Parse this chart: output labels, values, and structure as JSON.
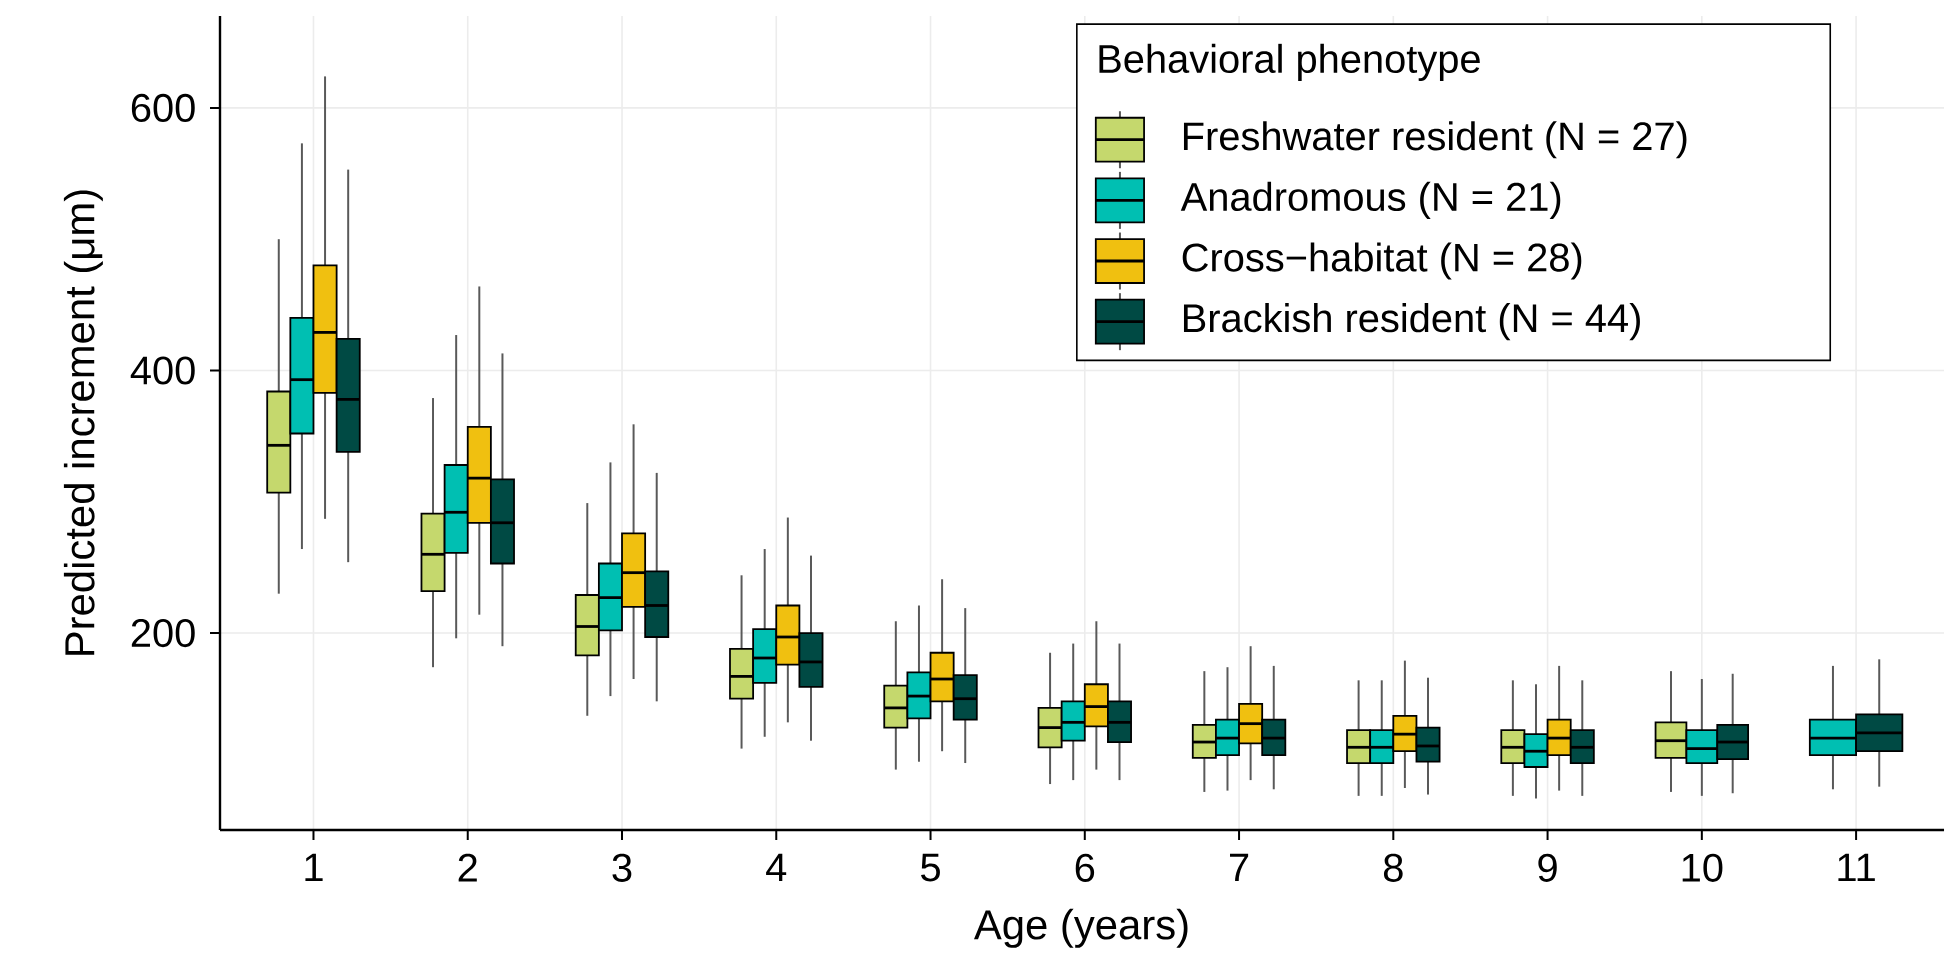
{
  "chart_data": {
    "type": "box",
    "xlabel": "Age (years)",
    "ylabel": "Predicted increment (μm)",
    "categories": [
      "1",
      "2",
      "3",
      "4",
      "5",
      "6",
      "7",
      "8",
      "9",
      "10",
      "11"
    ],
    "ylim": [
      50,
      670
    ],
    "yticks": [
      200,
      400,
      600
    ],
    "grid": true,
    "legend": "top right",
    "legend_title": "Behavioral phenotype",
    "series": [
      {
        "name": "Freshwater resident (N = 27)",
        "color": "#c5d86d",
        "boxes": [
          {
            "low": 230,
            "q1": 307,
            "median": 343,
            "q3": 384,
            "high": 500
          },
          {
            "low": 174,
            "q1": 232,
            "median": 260,
            "q3": 291,
            "high": 379
          },
          {
            "low": 137,
            "q1": 183,
            "median": 205,
            "q3": 229,
            "high": 299
          },
          {
            "low": 112,
            "q1": 150,
            "median": 167,
            "q3": 188,
            "high": 244
          },
          {
            "low": 96,
            "q1": 128,
            "median": 143,
            "q3": 160,
            "high": 209
          },
          {
            "low": 85,
            "q1": 113,
            "median": 128,
            "q3": 143,
            "high": 185
          },
          {
            "low": 79,
            "q1": 105,
            "median": 117,
            "q3": 130,
            "high": 171
          },
          {
            "low": 76,
            "q1": 101,
            "median": 113,
            "q3": 126,
            "high": 164
          },
          {
            "low": 76,
            "q1": 101,
            "median": 113,
            "q3": 126,
            "high": 164
          },
          {
            "low": 79,
            "q1": 105,
            "median": 118,
            "q3": 132,
            "high": 171
          },
          null
        ]
      },
      {
        "name": "Anadromous (N = 21)",
        "color": "#00bfb2",
        "boxes": [
          {
            "low": 264,
            "q1": 352,
            "median": 393,
            "q3": 440,
            "high": 573
          },
          {
            "low": 196,
            "q1": 261,
            "median": 292,
            "q3": 328,
            "high": 427
          },
          {
            "low": 152,
            "q1": 202,
            "median": 227,
            "q3": 253,
            "high": 330
          },
          {
            "low": 121,
            "q1": 162,
            "median": 181,
            "q3": 203,
            "high": 264
          },
          {
            "low": 102,
            "q1": 135,
            "median": 152,
            "q3": 170,
            "high": 221
          },
          {
            "low": 88,
            "q1": 118,
            "median": 132,
            "q3": 148,
            "high": 192
          },
          {
            "low": 80,
            "q1": 107,
            "median": 120,
            "q3": 134,
            "high": 174
          },
          {
            "low": 76,
            "q1": 101,
            "median": 113,
            "q3": 126,
            "high": 164
          },
          {
            "low": 74,
            "q1": 98,
            "median": 110,
            "q3": 123,
            "high": 161
          },
          {
            "low": 76,
            "q1": 101,
            "median": 112,
            "q3": 126,
            "high": 165
          },
          {
            "low": 81,
            "q1": 107,
            "median": 120,
            "q3": 134,
            "high": 175
          }
        ]
      },
      {
        "name": "Cross−habitat (N = 28)",
        "color": "#f0c010",
        "boxes": [
          {
            "low": 287,
            "q1": 383,
            "median": 429,
            "q3": 480,
            "high": 624
          },
          {
            "low": 214,
            "q1": 284,
            "median": 318,
            "q3": 357,
            "high": 464
          },
          {
            "low": 165,
            "q1": 220,
            "median": 246,
            "q3": 276,
            "high": 359
          },
          {
            "low": 132,
            "q1": 176,
            "median": 197,
            "q3": 221,
            "high": 288
          },
          {
            "low": 110,
            "q1": 148,
            "median": 165,
            "q3": 185,
            "high": 241
          },
          {
            "low": 96,
            "q1": 129,
            "median": 144,
            "q3": 161,
            "high": 209
          },
          {
            "low": 88,
            "q1": 116,
            "median": 131,
            "q3": 146,
            "high": 190
          },
          {
            "low": 82,
            "q1": 110,
            "median": 123,
            "q3": 137,
            "high": 179
          },
          {
            "low": 80,
            "q1": 107,
            "median": 120,
            "q3": 134,
            "high": 175
          },
          null,
          null
        ]
      },
      {
        "name": "Brackish resident (N = 44)",
        "color": "#004a44",
        "boxes": [
          {
            "low": 254,
            "q1": 338,
            "median": 378,
            "q3": 424,
            "high": 553
          },
          {
            "low": 190,
            "q1": 253,
            "median": 284,
            "q3": 317,
            "high": 413
          },
          {
            "low": 148,
            "q1": 197,
            "median": 221,
            "q3": 247,
            "high": 322
          },
          {
            "low": 118,
            "q1": 159,
            "median": 178,
            "q3": 200,
            "high": 259
          },
          {
            "low": 101,
            "q1": 134,
            "median": 150,
            "q3": 168,
            "high": 219
          },
          {
            "low": 88,
            "q1": 117,
            "median": 132,
            "q3": 148,
            "high": 192
          },
          {
            "low": 81,
            "q1": 107,
            "median": 120,
            "q3": 134,
            "high": 175
          },
          {
            "low": 77,
            "q1": 102,
            "median": 114,
            "q3": 128,
            "high": 166
          },
          {
            "low": 76,
            "q1": 101,
            "median": 113,
            "q3": 126,
            "high": 164
          },
          {
            "low": 78,
            "q1": 104,
            "median": 117,
            "q3": 130,
            "high": 169
          },
          {
            "low": 83,
            "q1": 110,
            "median": 124,
            "q3": 138,
            "high": 180
          }
        ]
      }
    ]
  }
}
